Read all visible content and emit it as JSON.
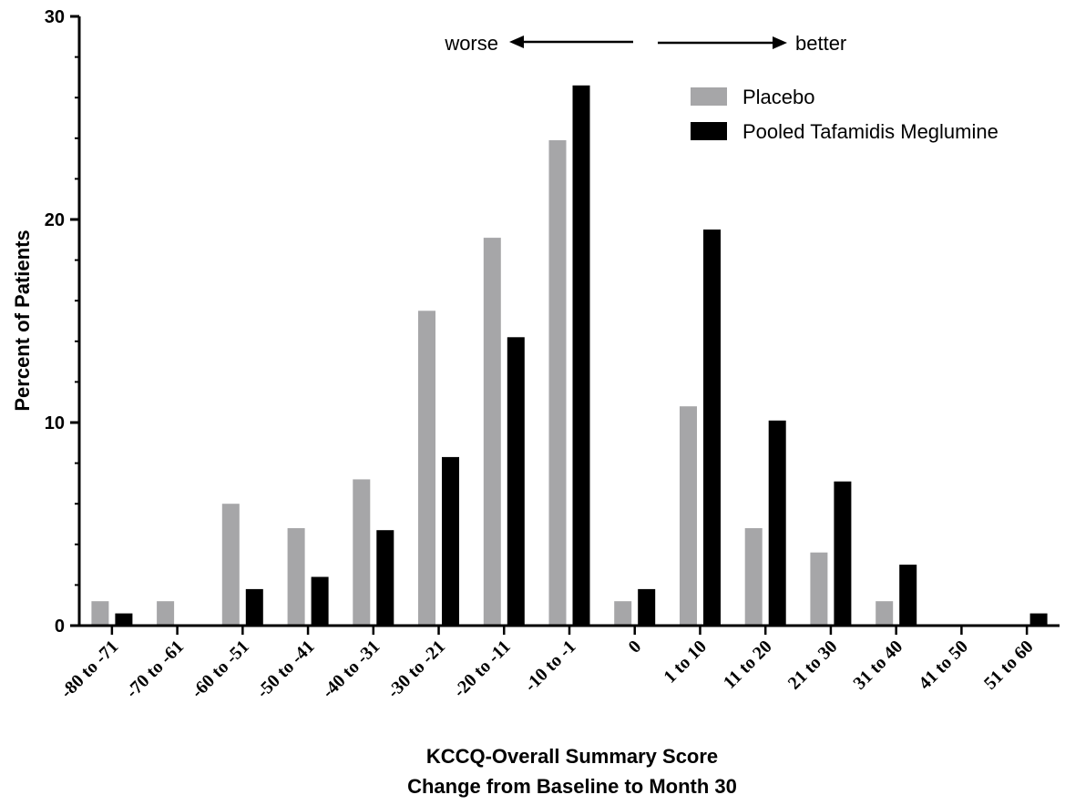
{
  "chart_data": {
    "type": "bar",
    "xlabel_lines": [
      "KCCQ-Overall Summary Score",
      "Change from  Baseline to Month 30"
    ],
    "ylabel": "Percent of Patients",
    "ylim": [
      0,
      30
    ],
    "yticks": [
      "0",
      "10",
      "20",
      "30"
    ],
    "legend_position": "top-right",
    "direction_labels": {
      "left": "worse",
      "right": "better"
    },
    "categories": [
      "-80 to -71",
      "-70 to -61",
      "-60 to -51",
      "-50 to -41",
      "-40 to -31",
      "-30 to -21",
      "-20 to -11",
      "-10 to -1",
      "0",
      "1 to 10",
      "11 to 20",
      "21 to 30",
      "31 to 40",
      "41 to 50",
      "51 to 60"
    ],
    "series": [
      {
        "name": "Placebo",
        "color": "#a6a6a8",
        "values": [
          1.2,
          1.2,
          6.0,
          4.8,
          7.2,
          15.5,
          19.1,
          23.9,
          1.2,
          10.8,
          4.8,
          3.6,
          1.2,
          0,
          0
        ]
      },
      {
        "name": "Pooled Tafamidis Meglumine",
        "color": "#000000",
        "values": [
          0.6,
          0,
          1.8,
          2.4,
          4.7,
          8.3,
          14.2,
          26.6,
          1.8,
          19.5,
          10.1,
          7.1,
          3.0,
          0,
          0.6
        ]
      }
    ]
  }
}
